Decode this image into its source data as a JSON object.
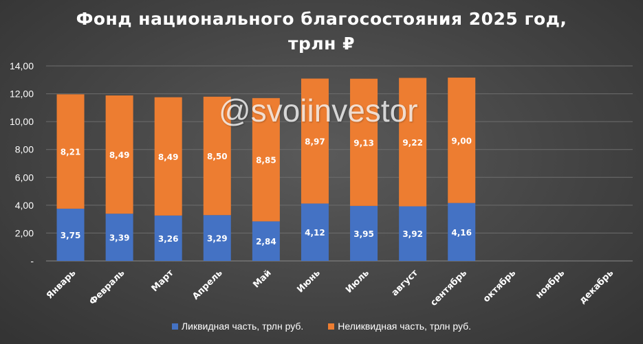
{
  "title_line1": "Фонд национального благосостояния 2025 год,",
  "title_line2": "трлн ₽",
  "watermark": "@svoiinvestor",
  "colors": {
    "liquid": "#4472c4",
    "illiquid": "#ed7d31",
    "grid": "#6e6e6e",
    "text": "#ffffff"
  },
  "chart_data": {
    "type": "bar",
    "stacked": true,
    "categories": [
      "Январь",
      "Февраль",
      "Март",
      "Апрель",
      "Май",
      "Июнь",
      "Июль",
      "август",
      "сентябрь",
      "октябрь",
      "ноябрь",
      "декабрь"
    ],
    "series": [
      {
        "name": "Ликвидная часть, трлн руб.",
        "values": [
          3.75,
          3.39,
          3.26,
          3.29,
          2.84,
          4.12,
          3.95,
          3.92,
          4.16,
          null,
          null,
          null
        ],
        "labels": [
          "3,75",
          "3,39",
          "3,26",
          "3,29",
          "2,84",
          "4,12",
          "3,95",
          "3,92",
          "4,16",
          "",
          "",
          ""
        ]
      },
      {
        "name": "Неликвидная часть, трлн руб.",
        "values": [
          8.21,
          8.49,
          8.49,
          8.5,
          8.85,
          8.97,
          9.13,
          9.22,
          9.0,
          null,
          null,
          null
        ],
        "labels": [
          "8,21",
          "8,49",
          "8,49",
          "8,50",
          "8,85",
          "8,97",
          "9,13",
          "9,22",
          "9,00",
          "",
          "",
          ""
        ]
      }
    ],
    "y_ticks": [
      "-",
      "2,00",
      "4,00",
      "6,00",
      "8,00",
      "10,00",
      "12,00",
      "14,00"
    ],
    "ylim": [
      0,
      14
    ],
    "grid": true,
    "legend_position": "bottom"
  }
}
